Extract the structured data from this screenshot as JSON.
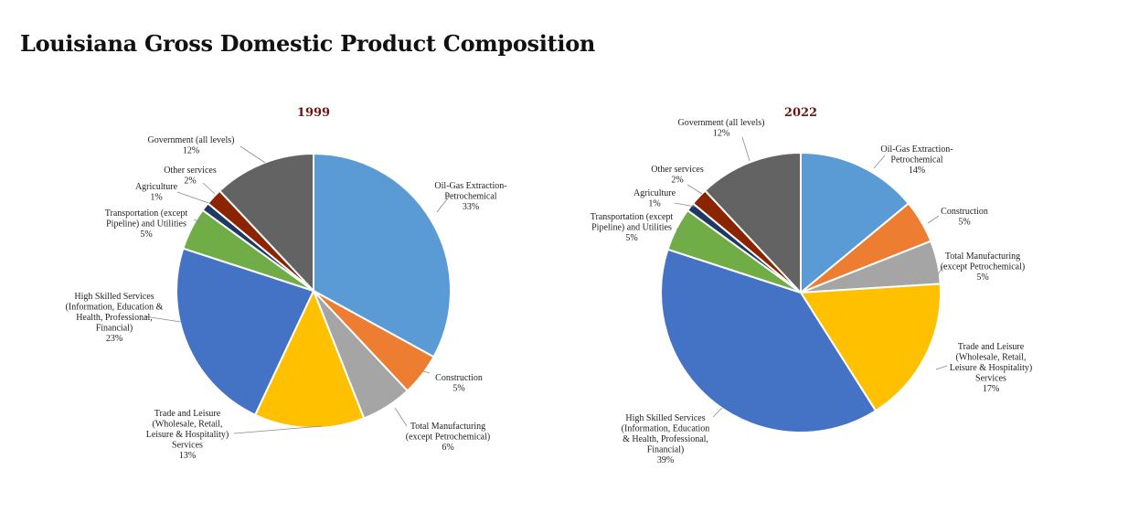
{
  "title": "Louisiana Gross Domestic Product Composition",
  "chart_data": [
    {
      "type": "pie",
      "title": "1999",
      "slices": [
        {
          "key": "oil",
          "label": [
            "Oil-Gas Extraction-",
            "Petrochemical"
          ],
          "pct_label": "33%",
          "value": 33,
          "color": "#5b9bd5"
        },
        {
          "key": "construction",
          "label": [
            "Construction"
          ],
          "pct_label": "5%",
          "value": 5,
          "color": "#ed7d31"
        },
        {
          "key": "manufacturing",
          "label": [
            "Total Manufacturing",
            "(except Petrochemical)"
          ],
          "pct_label": "6%",
          "value": 6,
          "color": "#a5a5a5"
        },
        {
          "key": "trade",
          "label": [
            "Trade and Leisure",
            "(Wholesale, Retail,",
            "Leisure & Hospitality)",
            "Services"
          ],
          "pct_label": "13%",
          "value": 13,
          "color": "#ffc000"
        },
        {
          "key": "high_skilled",
          "label": [
            "High Skilled Services",
            "(Information, Education &",
            "Health, Professional,",
            "Financial)"
          ],
          "pct_label": "23%",
          "value": 23,
          "color": "#4472c4"
        },
        {
          "key": "transportation",
          "label": [
            "Transportation (except",
            "Pipeline) and Utilities"
          ],
          "pct_label": "5%",
          "value": 5,
          "color": "#70ad47"
        },
        {
          "key": "agriculture",
          "label": [
            "Agriculture"
          ],
          "pct_label": "1%",
          "value": 1,
          "color": "#203864"
        },
        {
          "key": "other",
          "label": [
            "Other services"
          ],
          "pct_label": "2%",
          "value": 2,
          "color": "#8b2500"
        },
        {
          "key": "government",
          "label": [
            "Government (all levels)"
          ],
          "pct_label": "12%",
          "value": 12,
          "color": "#636363"
        }
      ]
    },
    {
      "type": "pie",
      "title": "2022",
      "slices": [
        {
          "key": "oil",
          "label": [
            "Oil-Gas Extraction-",
            "Petrochemical"
          ],
          "pct_label": "14%",
          "value": 14,
          "color": "#5b9bd5"
        },
        {
          "key": "construction",
          "label": [
            "Construction"
          ],
          "pct_label": "5%",
          "value": 5,
          "color": "#ed7d31"
        },
        {
          "key": "manufacturing",
          "label": [
            "Total Manufacturing",
            "(except Petrochemical)"
          ],
          "pct_label": "5%",
          "value": 5,
          "color": "#a5a5a5"
        },
        {
          "key": "trade",
          "label": [
            "Trade and Leisure",
            "(Wholesale, Retail,",
            "Leisure & Hospitality)",
            "Services"
          ],
          "pct_label": "17%",
          "value": 17,
          "color": "#ffc000"
        },
        {
          "key": "high_skilled",
          "label": [
            "High Skilled Services",
            "(Information, Education",
            "& Health, Professional,",
            "Financial)"
          ],
          "pct_label": "39%",
          "value": 39,
          "color": "#4472c4"
        },
        {
          "key": "transportation",
          "label": [
            "Transportation (except",
            "Pipeline) and Utilities"
          ],
          "pct_label": "5%",
          "value": 5,
          "color": "#70ad47"
        },
        {
          "key": "agriculture",
          "label": [
            "Agriculture"
          ],
          "pct_label": "1%",
          "value": 1,
          "color": "#203864"
        },
        {
          "key": "other",
          "label": [
            "Other services"
          ],
          "pct_label": "2%",
          "value": 2,
          "color": "#8b2500"
        },
        {
          "key": "government",
          "label": [
            "Government (all levels)"
          ],
          "pct_label": "12%",
          "value": 12,
          "color": "#636363"
        }
      ]
    }
  ]
}
